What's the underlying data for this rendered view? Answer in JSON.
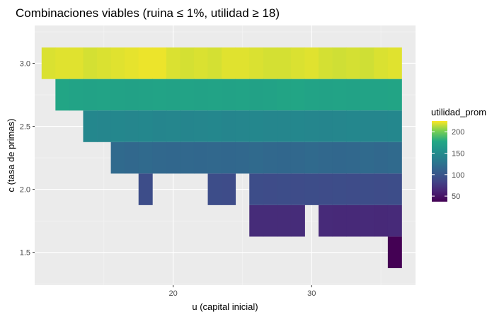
{
  "chart_data": {
    "type": "heatmap",
    "title": "Combinaciones viables (ruina ≤ 1%, utilidad ≥ 18)",
    "xlabel": "u (capital inicial)",
    "ylabel": "c (tasa de primas)",
    "xlim": [
      10.0,
      37.5
    ],
    "ylim": [
      1.24,
      3.3
    ],
    "x_ticks": [
      20,
      30
    ],
    "y_ticks": [
      1.5,
      2.0,
      2.5,
      3.0
    ],
    "grid": true,
    "background": "#ebebeb",
    "legend": {
      "title": "utilidad_prom",
      "placement": "right",
      "ticks": [
        50,
        100,
        150,
        200
      ],
      "range": [
        37,
        225
      ],
      "colormap": "viridis"
    },
    "cell_width": 1,
    "cell_height": 0.25,
    "rows": [
      {
        "c": 3.0,
        "cells": [
          [
            11,
            219
          ],
          [
            12,
            220
          ],
          [
            13,
            220
          ],
          [
            14,
            218
          ],
          [
            15,
            219
          ],
          [
            16,
            220
          ],
          [
            17,
            221
          ],
          [
            18,
            222
          ],
          [
            19,
            222
          ],
          [
            20,
            219
          ],
          [
            21,
            218
          ],
          [
            22,
            219
          ],
          [
            23,
            218
          ],
          [
            24,
            220
          ],
          [
            25,
            220
          ],
          [
            26,
            219
          ],
          [
            27,
            218
          ],
          [
            28,
            218
          ],
          [
            29,
            219
          ],
          [
            30,
            220
          ],
          [
            31,
            218
          ],
          [
            32,
            217
          ],
          [
            33,
            218
          ],
          [
            34,
            217
          ],
          [
            35,
            219
          ],
          [
            36,
            220
          ]
        ]
      },
      {
        "c": 2.75,
        "cells": [
          [
            12,
            175
          ],
          [
            13,
            173
          ],
          [
            14,
            172
          ],
          [
            15,
            173
          ],
          [
            16,
            172
          ],
          [
            17,
            171
          ],
          [
            18,
            172
          ],
          [
            19,
            173
          ],
          [
            20,
            172
          ],
          [
            21,
            173
          ],
          [
            22,
            172
          ],
          [
            23,
            173
          ],
          [
            24,
            172
          ],
          [
            25,
            173
          ],
          [
            26,
            171
          ],
          [
            27,
            172
          ],
          [
            28,
            174
          ],
          [
            29,
            175
          ],
          [
            30,
            173
          ],
          [
            31,
            172
          ],
          [
            32,
            173
          ],
          [
            33,
            172
          ],
          [
            34,
            173
          ],
          [
            35,
            173
          ],
          [
            36,
            174
          ]
        ]
      },
      {
        "c": 2.5,
        "cells": [
          [
            14,
            146
          ],
          [
            15,
            145
          ],
          [
            16,
            146
          ],
          [
            17,
            145
          ],
          [
            18,
            146
          ],
          [
            19,
            144
          ],
          [
            20,
            145
          ],
          [
            21,
            144
          ],
          [
            22,
            145
          ],
          [
            23,
            146
          ],
          [
            24,
            144
          ],
          [
            25,
            145
          ],
          [
            26,
            146
          ],
          [
            27,
            145
          ],
          [
            28,
            145
          ],
          [
            29,
            146
          ],
          [
            30,
            145
          ],
          [
            31,
            144
          ],
          [
            32,
            145
          ],
          [
            33,
            146
          ],
          [
            34,
            145
          ],
          [
            35,
            145
          ],
          [
            36,
            146
          ]
        ]
      },
      {
        "c": 2.25,
        "cells": [
          [
            16,
            118
          ],
          [
            17,
            117
          ],
          [
            18,
            118
          ],
          [
            19,
            117
          ],
          [
            20,
            116
          ],
          [
            21,
            117
          ],
          [
            22,
            116
          ],
          [
            23,
            117
          ],
          [
            24,
            116
          ],
          [
            25,
            117
          ],
          [
            26,
            118
          ],
          [
            27,
            117
          ],
          [
            28,
            116
          ],
          [
            29,
            117
          ],
          [
            30,
            118
          ],
          [
            31,
            117
          ],
          [
            32,
            116
          ],
          [
            33,
            117
          ],
          [
            34,
            118
          ],
          [
            35,
            117
          ],
          [
            36,
            118
          ]
        ]
      },
      {
        "c": 2.0,
        "cells": [
          [
            18,
            92
          ],
          [
            23,
            92
          ],
          [
            24,
            91
          ],
          [
            26,
            92
          ],
          [
            27,
            91
          ],
          [
            28,
            92
          ],
          [
            29,
            91
          ],
          [
            30,
            92
          ],
          [
            31,
            91
          ],
          [
            32,
            92
          ],
          [
            33,
            91
          ],
          [
            34,
            92
          ],
          [
            35,
            91
          ],
          [
            36,
            92
          ]
        ]
      },
      {
        "c": 1.75,
        "cells": [
          [
            26,
            67
          ],
          [
            27,
            67
          ],
          [
            28,
            67
          ],
          [
            29,
            67
          ],
          [
            31,
            66
          ],
          [
            32,
            65
          ],
          [
            33,
            65
          ],
          [
            34,
            66
          ],
          [
            35,
            65
          ],
          [
            36,
            66
          ]
        ]
      },
      {
        "c": 1.5,
        "cells": [
          [
            36,
            37
          ]
        ]
      }
    ]
  }
}
